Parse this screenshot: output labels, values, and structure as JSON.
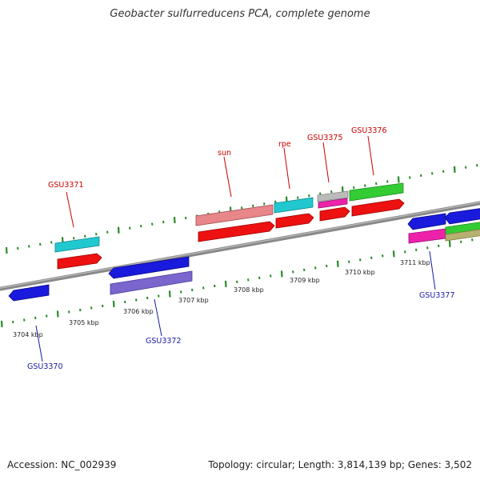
{
  "title": "Geobacter sulfurreducens PCA, complete genome",
  "footer": {
    "accession": "Accession: NC_002939",
    "summary": "Topology: circular; Length: 3,814,139 bp; Genes: 3,502"
  },
  "colors": {
    "red": "#ee1111",
    "cyan": "#22c8d0",
    "blue": "#1a1add",
    "purple": "#7a66cc",
    "green": "#33cc33",
    "pink": "#e8868a",
    "magenta": "#ee22aa",
    "gray": "#bbbbbb",
    "olive": "#b8b070",
    "tick": "#2a8a2a"
  },
  "kbp_labels": [
    "3704 kbp",
    "3705 kbp",
    "3706 kbp",
    "3707 kbp",
    "3708 kbp",
    "3709 kbp",
    "3710 kbp",
    "3711 kbp"
  ],
  "gene_labels_top": [
    "GSU3371",
    "sun",
    "rpe",
    "GSU3375",
    "GSU3376"
  ],
  "gene_labels_bottom": [
    "GSU3370",
    "GSU3372",
    "GSU3377"
  ]
}
